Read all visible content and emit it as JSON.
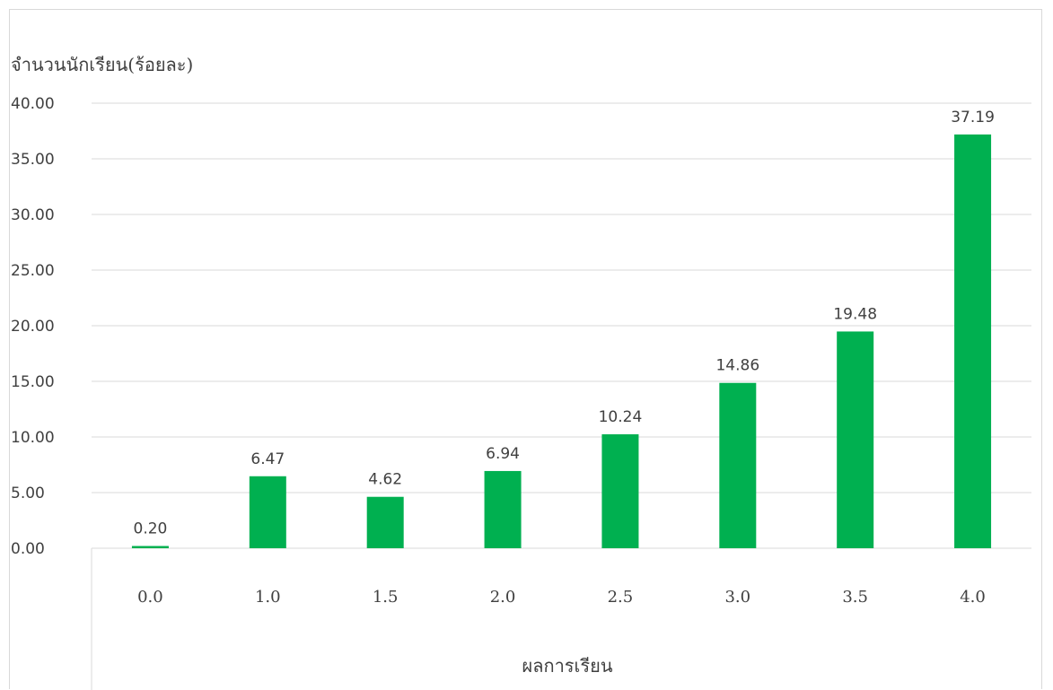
{
  "chart_data": {
    "type": "bar",
    "title": "",
    "ylabel": "จำนวนนักเรียน(ร้อยละ)",
    "xlabel": "ผลการเรียน",
    "categories": [
      "0.0",
      "1.0",
      "1.5",
      "2.0",
      "2.5",
      "3.0",
      "3.5",
      "4.0"
    ],
    "values": [
      0.2,
      6.47,
      4.62,
      6.94,
      10.24,
      14.86,
      19.48,
      37.19
    ],
    "value_labels": [
      "0.20",
      "6.47",
      "4.62",
      "6.94",
      "10.24",
      "14.86",
      "19.48",
      "37.19"
    ],
    "yticks": [
      "0.00",
      "5.00",
      "10.00",
      "15.00",
      "20.00",
      "25.00",
      "30.00",
      "35.00",
      "40.00"
    ],
    "ytick_values": [
      0,
      5,
      10,
      15,
      20,
      25,
      30,
      35,
      40
    ],
    "ylim": [
      0,
      40
    ],
    "grid": true,
    "legend": "none",
    "bar_color": "#00b050",
    "grid_color": "#d9d9d9"
  }
}
